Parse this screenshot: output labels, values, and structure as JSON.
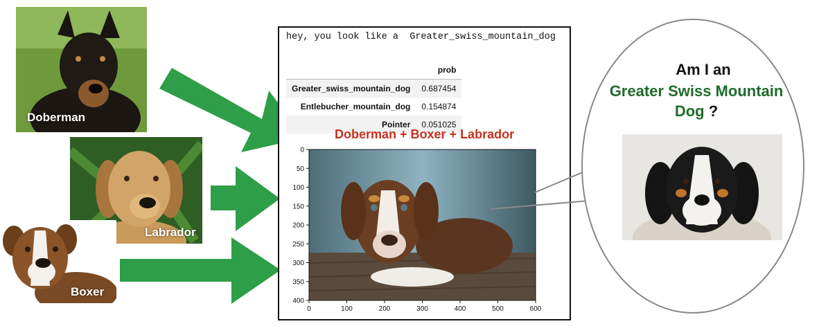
{
  "inputs": [
    {
      "name": "Doberman"
    },
    {
      "name": "Labrador"
    },
    {
      "name": "Boxer"
    }
  ],
  "notebook": {
    "output_text": "hey, you look like a  Greater_swiss_mountain_dog",
    "table": {
      "header": "prob",
      "rows": [
        {
          "breed": "Greater_swiss_mountain_dog",
          "prob": "0.687454"
        },
        {
          "breed": "Entlebucher_mountain_dog",
          "prob": "0.154874"
        },
        {
          "breed": "Pointer",
          "prob": "0.051025"
        }
      ]
    }
  },
  "mix_title": "Doberman + Boxer + Labrador",
  "chart_data": {
    "type": "image",
    "x_ticks": [
      "0",
      "100",
      "200",
      "300",
      "400",
      "500",
      "600"
    ],
    "y_ticks": [
      "0",
      "50",
      "100",
      "150",
      "200",
      "250",
      "300",
      "350",
      "400"
    ],
    "xlim": [
      0,
      600
    ],
    "ylim": [
      400,
      0
    ]
  },
  "bubble": {
    "line1": "Am I an",
    "breed_line_a": "Greater Swiss Mountain",
    "breed_line_b": "Dog",
    "question_mark": "?"
  },
  "colors": {
    "arrow": "#2e9e48",
    "mix_title": "#c8301e",
    "breed_text": "#1f6b2a"
  }
}
